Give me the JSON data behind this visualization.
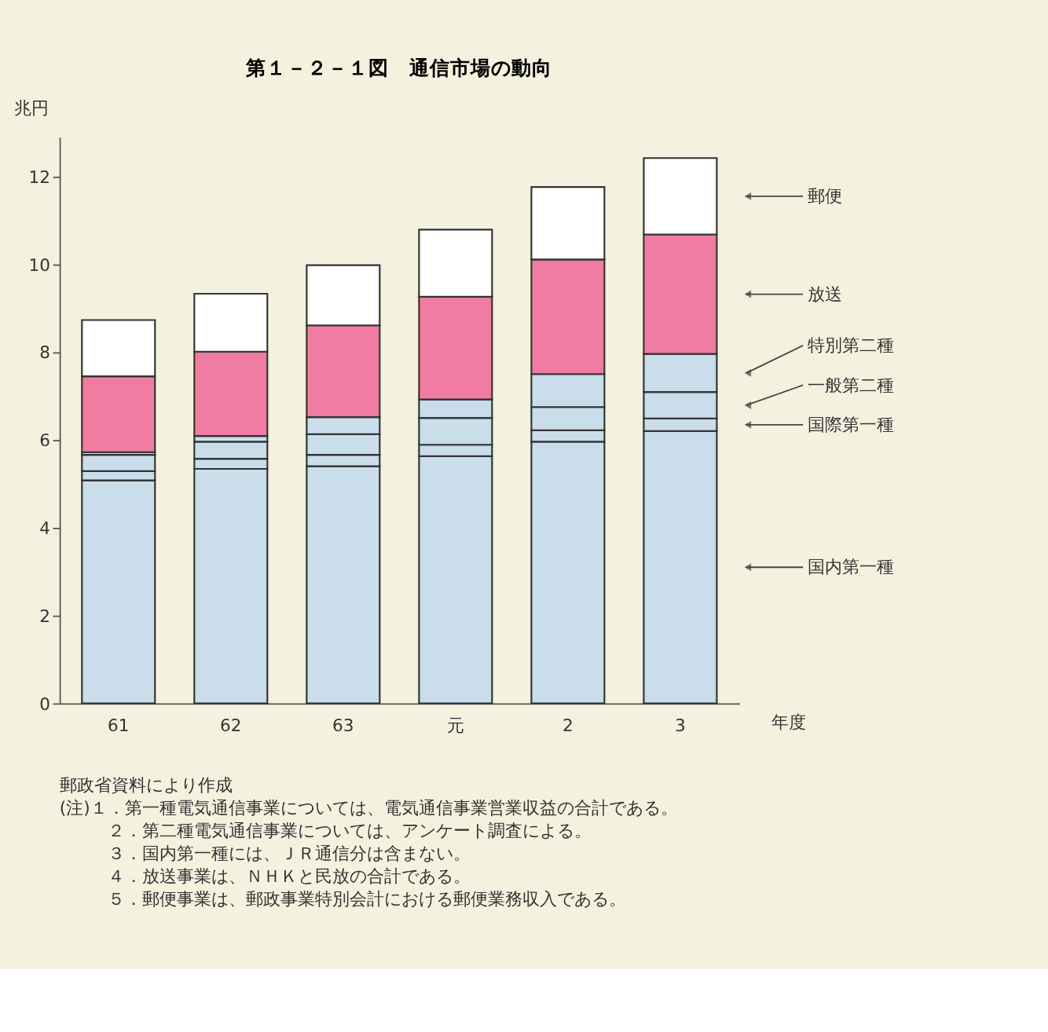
{
  "chart_data": {
    "type": "bar",
    "title": "第１－２－１図　通信市場の動向",
    "xlabel": "年度",
    "ylabel": "兆円",
    "categories": [
      "61",
      "62",
      "63",
      "元",
      "2",
      "3"
    ],
    "stacked": true,
    "series": [
      {
        "name": "国内第一種",
        "color": "#c9ddeb",
        "values": [
          5.08,
          5.34,
          5.4,
          5.63,
          5.96,
          6.2
        ]
      },
      {
        "name": "国際第一種",
        "color": "#c9ddeb",
        "values": [
          0.21,
          0.23,
          0.26,
          0.26,
          0.26,
          0.29
        ]
      },
      {
        "name": "一般第二種",
        "color": "#c9ddeb",
        "values": [
          0.37,
          0.39,
          0.47,
          0.61,
          0.53,
          0.6
        ]
      },
      {
        "name": "特別第二種",
        "color": "#c9ddeb",
        "values": [
          0.06,
          0.13,
          0.39,
          0.42,
          0.75,
          0.87
        ]
      },
      {
        "name": "放送",
        "color": "#f07ca2",
        "values": [
          1.73,
          1.92,
          2.09,
          2.34,
          2.61,
          2.72
        ]
      },
      {
        "name": "郵便",
        "color": "#ffffff",
        "values": [
          1.28,
          1.32,
          1.37,
          1.53,
          1.65,
          1.74
        ]
      }
    ],
    "ylim": [
      0,
      12.9
    ],
    "yticks": [
      0,
      2,
      4,
      6,
      8,
      10,
      12
    ],
    "annotations": [
      "郵政省資料により作成",
      "(注)１．第一種電気通信事業については、電気通信事業営業収益の合計である。",
      "２．第二種電気通信事業については、アンケート調査による。",
      "３．国内第一種には、ＪＲ通信分は含まない。",
      "４．放送事業は、ＮＨＫと民放の合計である。",
      "５．郵便事業は、郵政事業特別会計における郵便業務収入である。"
    ]
  }
}
